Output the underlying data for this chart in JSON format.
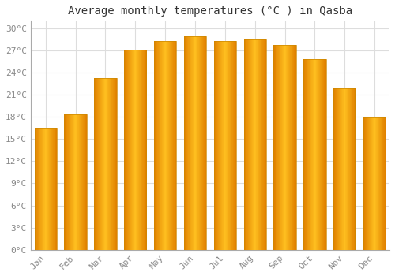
{
  "title": "Average monthly temperatures (°C ) in Qasba",
  "months": [
    "Jan",
    "Feb",
    "Mar",
    "Apr",
    "May",
    "Jun",
    "Jul",
    "Aug",
    "Sep",
    "Oct",
    "Nov",
    "Dec"
  ],
  "temperatures": [
    16.5,
    18.3,
    23.2,
    27.1,
    28.3,
    28.9,
    28.3,
    28.5,
    27.7,
    25.8,
    21.8,
    17.9
  ],
  "bar_color_left": "#E8820A",
  "bar_color_mid": "#FFD040",
  "bar_color_right": "#E8820A",
  "background_color": "#FFFFFF",
  "plot_bg_color": "#FFFFFF",
  "grid_color": "#DDDDDD",
  "ylim": [
    0,
    31
  ],
  "yticks": [
    0,
    3,
    6,
    9,
    12,
    15,
    18,
    21,
    24,
    27,
    30
  ],
  "title_fontsize": 10,
  "tick_fontsize": 8,
  "tick_color": "#888888",
  "title_color": "#333333",
  "font_family": "monospace",
  "bar_width": 0.75
}
